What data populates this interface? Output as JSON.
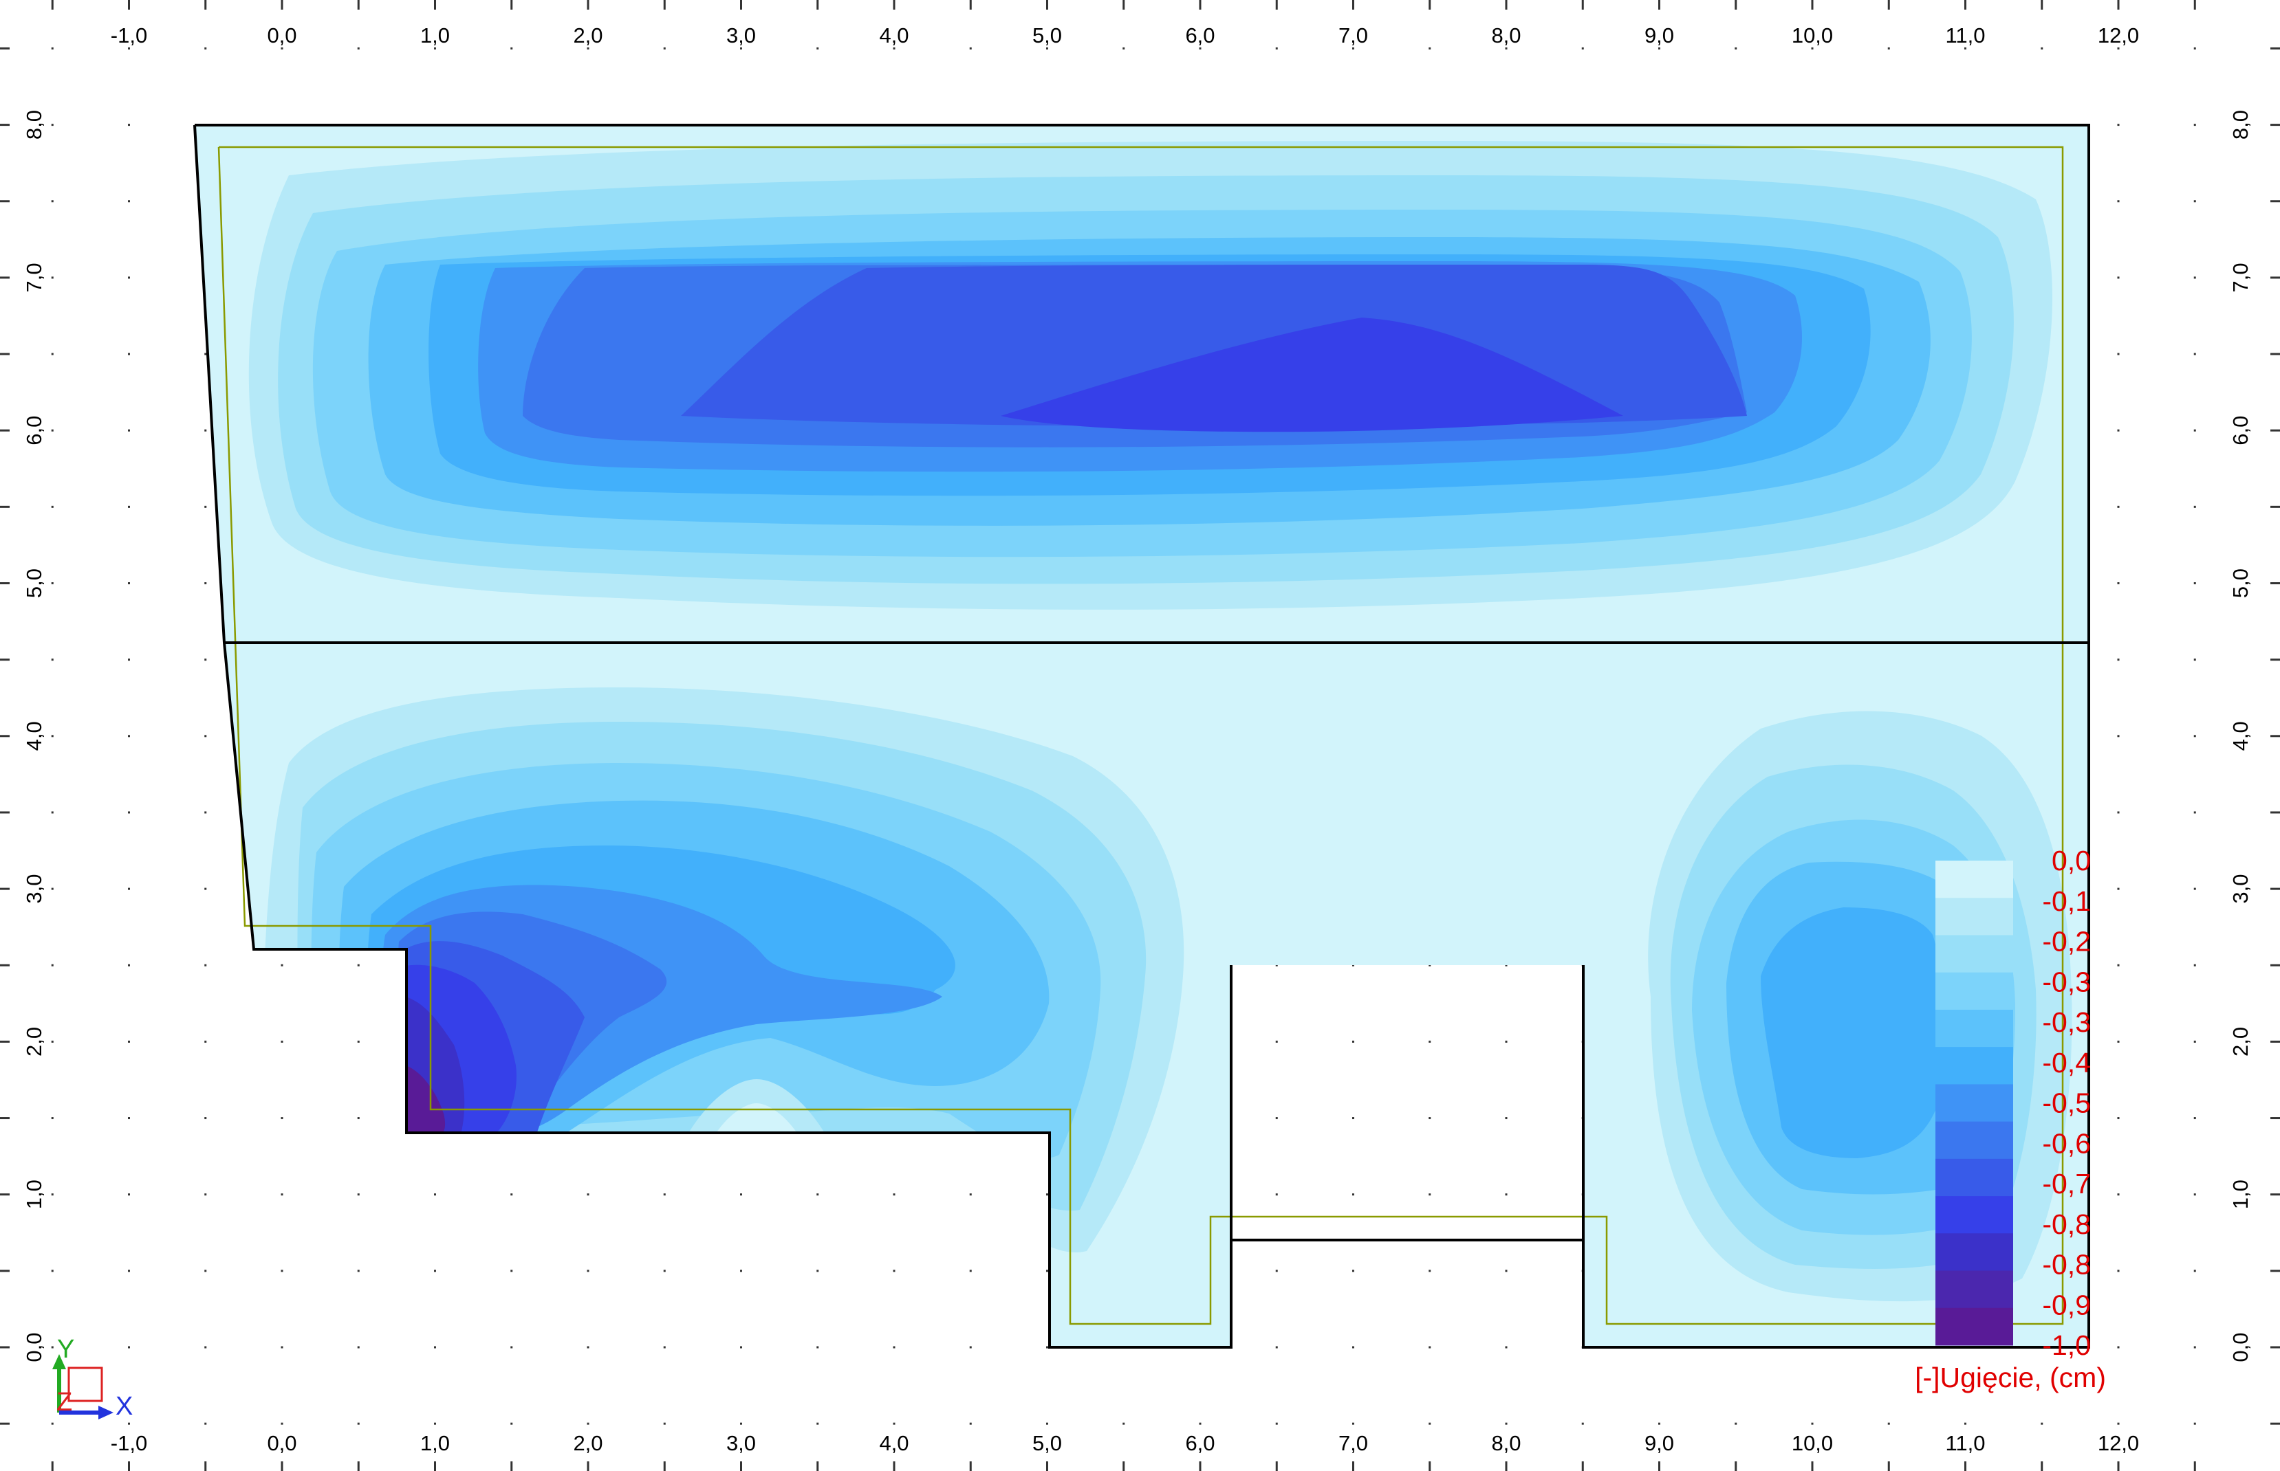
{
  "axes": {
    "x_ticks": [
      "-1,0",
      "0,0",
      "1,0",
      "2,0",
      "3,0",
      "4,0",
      "5,0",
      "6,0",
      "7,0",
      "8,0",
      "9,0",
      "10,0",
      "11,0",
      "12,0"
    ],
    "y_ticks": [
      "0,0",
      "1,0",
      "2,0",
      "3,0",
      "4,0",
      "5,0",
      "6,0",
      "7,0",
      "8,0"
    ]
  },
  "legend": {
    "title": "[-]Ugięcie, (cm)",
    "labels": [
      "0,0",
      "-0,1",
      "-0,2",
      "-0,3",
      "-0,3",
      "-0,4",
      "-0,5",
      "-0,6",
      "-0,7",
      "-0,8",
      "-0,8",
      "-0,9",
      "-1,0"
    ],
    "colors": [
      "#d2f4fb",
      "#b5e9f8",
      "#98dff8",
      "#7cd3fa",
      "#5cc2fb",
      "#42b0fb",
      "#3f93f6",
      "#3b77ef",
      "#385be9",
      "#3640e9",
      "#3b31c9",
      "#4b27ae",
      "#591b97"
    ],
    "label_color": "#e00000"
  },
  "coord_axes": {
    "x_label": "X",
    "y_label": "Y",
    "z_label": "Z",
    "x_color": "#2233dd",
    "y_color": "#22aa22",
    "z_color": "#dd2222"
  },
  "colors": {
    "plate_fill": "#d2f4fb",
    "plate_edge": "#000000",
    "inner_offset": "#8a9a00",
    "background": "#ffffff",
    "grid_dot": "#333333"
  }
}
